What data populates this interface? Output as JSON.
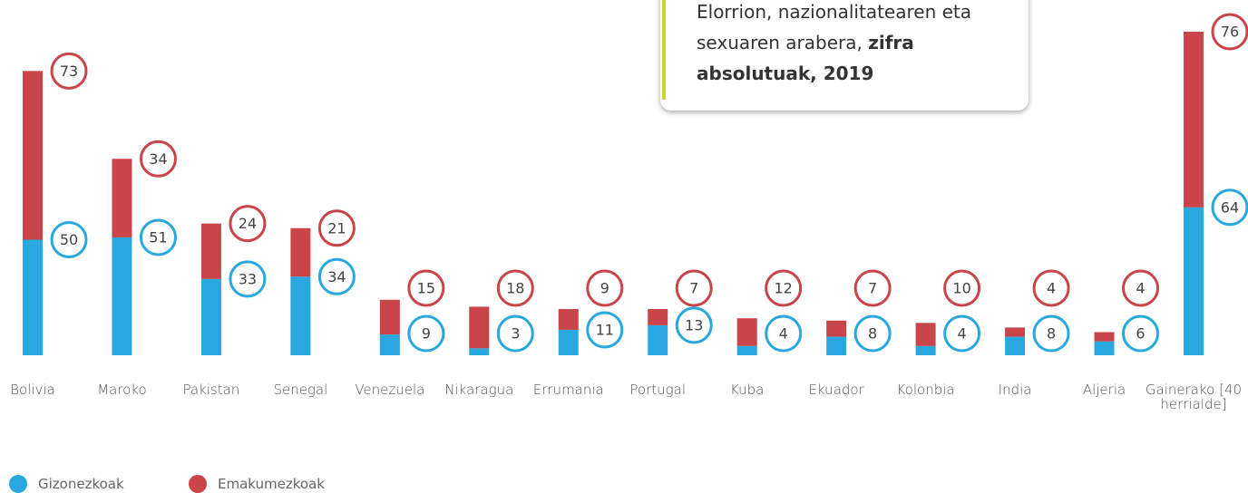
{
  "chart_data": {
    "type": "bar",
    "stacked": true,
    "title": "Elorrion, nazionalitatearen eta sexuaren arabera,",
    "title_emphasis": "zifra absolutuak, 2019",
    "categories": [
      "Bolivia",
      "Maroko",
      "Pakistan",
      "Senegal",
      "Venezuela",
      "Nikaragua",
      "Errumania",
      "Portugal",
      "Kuba",
      "Ekuador",
      "Kolonbia",
      "India",
      "Aljeria",
      "Gainerako [40 herrialde]"
    ],
    "series": [
      {
        "name": "Gizonezkoak",
        "color": "#29a8e0",
        "values": [
          50,
          51,
          33,
          34,
          9,
          3,
          11,
          13,
          4,
          8,
          4,
          8,
          6,
          64
        ]
      },
      {
        "name": "Emakumezkoak",
        "color": "#c9454a",
        "values": [
          73,
          34,
          24,
          21,
          15,
          18,
          9,
          7,
          12,
          7,
          10,
          4,
          4,
          76
        ]
      }
    ],
    "ylim": [
      0,
      140
    ]
  }
}
